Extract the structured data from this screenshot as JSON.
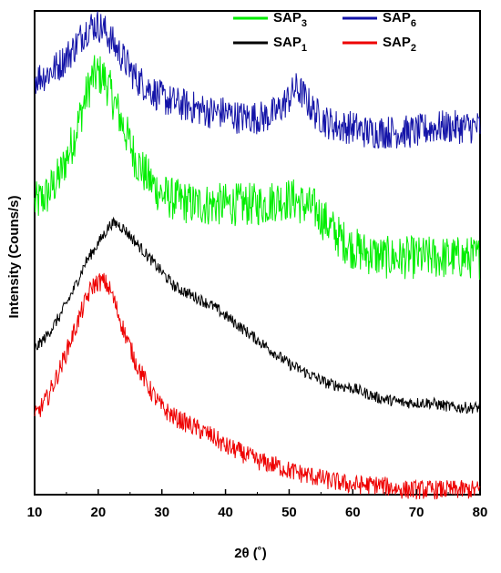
{
  "chart_data": {
    "type": "line",
    "xlabel": "2θ (˚)",
    "ylabel": "Intensity (Couns/s)",
    "xlim": [
      10,
      80
    ],
    "x_ticks": [
      "10",
      "20",
      "30",
      "40",
      "50",
      "60",
      "70",
      "80"
    ],
    "y_ticks_shown": false,
    "grid": false,
    "legend_position": "top-right",
    "series": [
      {
        "name": "SAP3",
        "name_base": "SAP",
        "name_sub": "3",
        "color": "#00ee00",
        "x": [
          10,
          12,
          14,
          16,
          18,
          19,
          20,
          21,
          22,
          24,
          26,
          28,
          30,
          32,
          35,
          38,
          40,
          42,
          44,
          46,
          48,
          50,
          51,
          52,
          54,
          56,
          58,
          60,
          62,
          65,
          68,
          70,
          73,
          76,
          78,
          80
        ],
        "values": [
          0.6,
          0.62,
          0.66,
          0.73,
          0.82,
          0.86,
          0.87,
          0.86,
          0.83,
          0.76,
          0.69,
          0.65,
          0.62,
          0.61,
          0.6,
          0.6,
          0.6,
          0.6,
          0.6,
          0.6,
          0.61,
          0.61,
          0.61,
          0.6,
          0.59,
          0.56,
          0.53,
          0.51,
          0.5,
          0.49,
          0.49,
          0.49,
          0.49,
          0.49,
          0.49,
          0.49
        ]
      },
      {
        "name": "SAP6",
        "name_base": "SAP",
        "name_sub": "6",
        "color": "#1414a8",
        "x": [
          10,
          12,
          14,
          16,
          18,
          19,
          20,
          21,
          22,
          24,
          26,
          28,
          30,
          32,
          35,
          38,
          40,
          42,
          44,
          46,
          48,
          50,
          51,
          52,
          54,
          56,
          58,
          60,
          62,
          65,
          68,
          70,
          73,
          76,
          78,
          80
        ],
        "values": [
          0.86,
          0.87,
          0.89,
          0.92,
          0.96,
          0.97,
          0.97,
          0.96,
          0.94,
          0.9,
          0.86,
          0.84,
          0.82,
          0.81,
          0.8,
          0.79,
          0.79,
          0.78,
          0.78,
          0.78,
          0.79,
          0.82,
          0.84,
          0.83,
          0.79,
          0.77,
          0.76,
          0.76,
          0.75,
          0.75,
          0.75,
          0.75,
          0.76,
          0.76,
          0.76,
          0.76
        ]
      },
      {
        "name": "SAP1",
        "name_base": "SAP",
        "name_sub": "1",
        "color": "#000000",
        "x": [
          10,
          12,
          14,
          16,
          18,
          19,
          20,
          21,
          22,
          23,
          24,
          26,
          28,
          30,
          32,
          35,
          38,
          40,
          42,
          45,
          48,
          50,
          53,
          56,
          60,
          64,
          68,
          72,
          76,
          80
        ],
        "values": [
          0.3,
          0.33,
          0.37,
          0.42,
          0.48,
          0.5,
          0.52,
          0.54,
          0.56,
          0.56,
          0.55,
          0.52,
          0.49,
          0.46,
          0.43,
          0.41,
          0.39,
          0.37,
          0.35,
          0.32,
          0.29,
          0.27,
          0.25,
          0.23,
          0.22,
          0.2,
          0.19,
          0.19,
          0.18,
          0.18
        ]
      },
      {
        "name": "SAP2",
        "name_base": "SAP",
        "name_sub": "2",
        "color": "#ee0000",
        "x": [
          10,
          12,
          14,
          16,
          18,
          19,
          20,
          21,
          22,
          23,
          24,
          26,
          28,
          30,
          32,
          35,
          38,
          40,
          42,
          45,
          48,
          50,
          53,
          56,
          60,
          64,
          68,
          72,
          76,
          80
        ],
        "values": [
          0.16,
          0.2,
          0.26,
          0.33,
          0.4,
          0.43,
          0.44,
          0.44,
          0.42,
          0.38,
          0.34,
          0.27,
          0.22,
          0.18,
          0.16,
          0.14,
          0.12,
          0.1,
          0.09,
          0.07,
          0.06,
          0.05,
          0.04,
          0.03,
          0.02,
          0.02,
          0.01,
          0.01,
          0.01,
          0.01
        ]
      }
    ]
  }
}
